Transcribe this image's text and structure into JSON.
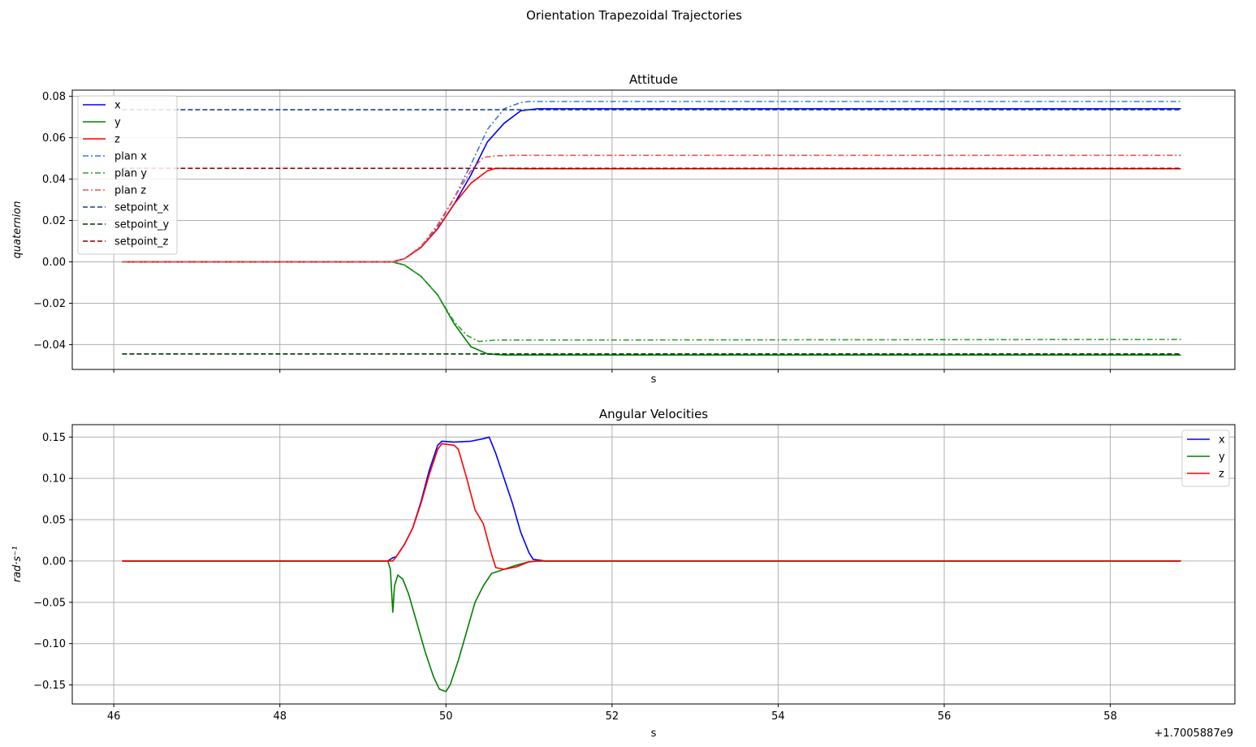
{
  "figure": {
    "suptitle": "Orientation Trapezoidal Trajectories",
    "offset_label": "+1.7005887e9"
  },
  "chart_data": [
    {
      "type": "line",
      "title": "Attitude",
      "xlabel": "s",
      "ylabel": "quaternion",
      "xlim": [
        45.5,
        59.5
      ],
      "ylim": [
        -0.052,
        0.083
      ],
      "xticks": [
        46,
        48,
        50,
        52,
        54,
        56,
        58
      ],
      "xticklabels_shown": false,
      "yticks": [
        -0.04,
        -0.02,
        0.0,
        0.02,
        0.04,
        0.06,
        0.08
      ],
      "yticklabels": [
        "−0.04",
        "−0.02",
        "0.00",
        "0.02",
        "0.04",
        "0.06",
        "0.08"
      ],
      "grid": true,
      "legend_position": "top-left",
      "series": [
        {
          "name": "x",
          "color": "#0000ff",
          "style": "solid",
          "x": [
            46.1,
            49.35,
            49.5,
            49.7,
            49.9,
            50.1,
            50.3,
            50.5,
            50.7,
            50.9,
            51.1,
            58.85
          ],
          "y": [
            0.0,
            0.0,
            0.0015,
            0.007,
            0.016,
            0.028,
            0.042,
            0.058,
            0.067,
            0.073,
            0.074,
            0.074
          ]
        },
        {
          "name": "y",
          "color": "#008000",
          "style": "solid",
          "x": [
            46.1,
            49.35,
            49.5,
            49.7,
            49.9,
            50.1,
            50.3,
            50.5,
            50.7,
            50.9,
            58.85
          ],
          "y": [
            0.0,
            0.0,
            -0.0015,
            -0.007,
            -0.016,
            -0.03,
            -0.041,
            -0.0445,
            -0.045,
            -0.045,
            -0.045
          ]
        },
        {
          "name": "z",
          "color": "#ff0000",
          "style": "solid",
          "x": [
            46.1,
            49.35,
            49.5,
            49.7,
            49.9,
            50.1,
            50.3,
            50.5,
            50.6,
            50.8,
            51.0,
            58.85
          ],
          "y": [
            0.0,
            0.0,
            0.0015,
            0.007,
            0.016,
            0.028,
            0.038,
            0.044,
            0.0452,
            0.0451,
            0.045,
            0.045
          ]
        },
        {
          "name": "plan x",
          "color": "#3a78d8",
          "style": "dashdot",
          "x": [
            46.1,
            49.35,
            49.5,
            49.7,
            49.9,
            50.1,
            50.3,
            50.5,
            50.7,
            50.9,
            51.0,
            58.85
          ],
          "y": [
            0.0,
            0.0,
            0.0015,
            0.0075,
            0.017,
            0.031,
            0.047,
            0.064,
            0.074,
            0.077,
            0.0775,
            0.0775
          ]
        },
        {
          "name": "plan y",
          "color": "#2ca02c",
          "style": "dashdot",
          "x": [
            46.1,
            49.35,
            49.5,
            49.7,
            49.9,
            50.1,
            50.25,
            50.4,
            50.6,
            58.85
          ],
          "y": [
            0.0,
            0.0,
            -0.0015,
            -0.007,
            -0.016,
            -0.029,
            -0.0355,
            -0.0385,
            -0.0378,
            -0.0375
          ]
        },
        {
          "name": "plan z",
          "color": "#f05050",
          "style": "dashdot",
          "x": [
            46.1,
            49.35,
            49.5,
            49.7,
            49.9,
            50.1,
            50.3,
            50.45,
            50.6,
            50.8,
            58.85
          ],
          "y": [
            0.0,
            0.0,
            0.0015,
            0.0075,
            0.018,
            0.031,
            0.044,
            0.0505,
            0.0512,
            0.0515,
            0.0515
          ]
        },
        {
          "name": "setpoint_x",
          "color": "#1f3f8f",
          "style": "dashed",
          "x": [
            46.1,
            58.85
          ],
          "y": [
            0.0735,
            0.0735
          ]
        },
        {
          "name": "setpoint_y",
          "color": "#003300",
          "style": "dashed",
          "x": [
            46.1,
            58.85
          ],
          "y": [
            -0.0445,
            -0.0445
          ]
        },
        {
          "name": "setpoint_z",
          "color": "#8b0000",
          "style": "dashed",
          "x": [
            46.1,
            58.85
          ],
          "y": [
            0.0452,
            0.0452
          ]
        }
      ]
    },
    {
      "type": "line",
      "title": "Angular Velocities",
      "xlabel": "s",
      "ylabel": "rad·s⁻¹",
      "xlim": [
        45.5,
        59.5
      ],
      "ylim": [
        -0.173,
        0.165
      ],
      "xticks": [
        46,
        48,
        50,
        52,
        54,
        56,
        58
      ],
      "xticklabels": [
        "46",
        "48",
        "50",
        "52",
        "54",
        "56",
        "58"
      ],
      "yticks": [
        -0.15,
        -0.1,
        -0.05,
        0.0,
        0.05,
        0.1,
        0.15
      ],
      "yticklabels": [
        "−0.15",
        "−0.10",
        "−0.05",
        "0.00",
        "0.05",
        "0.10",
        "0.15"
      ],
      "grid": true,
      "legend_position": "top-right",
      "series": [
        {
          "name": "x",
          "color": "#0000ff",
          "style": "solid",
          "x": [
            46.1,
            49.3,
            49.36,
            49.4,
            49.5,
            49.6,
            49.7,
            49.8,
            49.9,
            49.95,
            50.1,
            50.3,
            50.45,
            50.52,
            50.6,
            50.7,
            50.8,
            50.9,
            51.0,
            51.05,
            51.2,
            58.85
          ],
          "y": [
            0.0,
            0.0,
            0.004,
            0.005,
            0.02,
            0.04,
            0.072,
            0.11,
            0.14,
            0.145,
            0.144,
            0.145,
            0.148,
            0.15,
            0.13,
            0.1,
            0.07,
            0.035,
            0.01,
            0.002,
            0.0,
            0.0
          ]
        },
        {
          "name": "y",
          "color": "#008000",
          "style": "solid",
          "x": [
            46.1,
            49.3,
            49.33,
            49.36,
            49.38,
            49.42,
            49.48,
            49.55,
            49.65,
            49.75,
            49.85,
            49.92,
            50.0,
            50.05,
            50.15,
            50.25,
            50.35,
            50.45,
            50.55,
            50.7,
            50.85,
            51.0,
            51.1,
            58.85
          ],
          "y": [
            0.0,
            0.0,
            -0.01,
            -0.062,
            -0.03,
            -0.017,
            -0.022,
            -0.04,
            -0.075,
            -0.11,
            -0.14,
            -0.155,
            -0.158,
            -0.15,
            -0.12,
            -0.085,
            -0.05,
            -0.03,
            -0.015,
            -0.01,
            -0.005,
            -0.001,
            0.0,
            0.0
          ]
        },
        {
          "name": "z",
          "color": "#ff0000",
          "style": "solid",
          "x": [
            46.1,
            49.3,
            49.36,
            49.4,
            49.5,
            49.6,
            49.7,
            49.8,
            49.9,
            49.95,
            50.1,
            50.15,
            50.25,
            50.35,
            50.45,
            50.55,
            50.6,
            50.7,
            50.85,
            51.0,
            51.1,
            58.85
          ],
          "y": [
            0.0,
            0.0,
            0.0,
            0.005,
            0.02,
            0.04,
            0.07,
            0.105,
            0.135,
            0.142,
            0.14,
            0.135,
            0.1,
            0.062,
            0.045,
            0.008,
            -0.008,
            -0.01,
            -0.007,
            -0.001,
            0.0,
            0.0
          ]
        }
      ]
    }
  ]
}
